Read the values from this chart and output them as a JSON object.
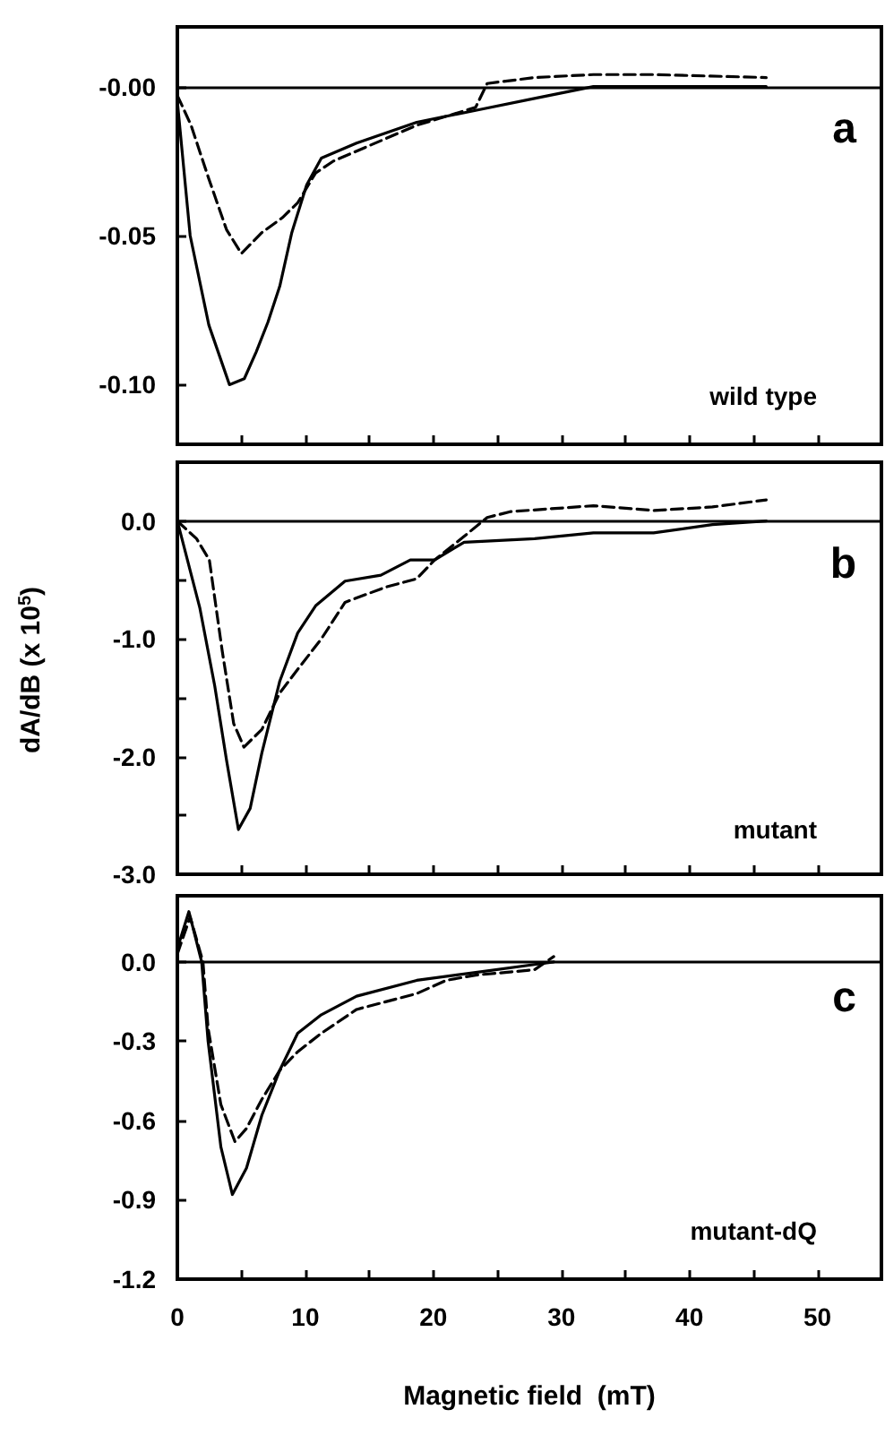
{
  "chart_data": [
    {
      "type": "line",
      "annotations": [
        "a",
        "wild type"
      ],
      "xlim": [
        0,
        55
      ],
      "xticks": [
        0,
        {
          "value": 5,
          "label": null
        },
        10,
        {
          "value": 15,
          "label": null
        },
        20,
        {
          "value": 25,
          "label": null
        },
        30,
        {
          "value": 35,
          "label": null
        },
        40,
        {
          "value": 45,
          "label": null
        },
        50
      ],
      "ylim": [
        -0.12,
        0.02
      ],
      "yticks": [
        {
          "value": 0,
          "label": "-0.00"
        },
        {
          "value": -0.05,
          "label": "-0.05"
        },
        {
          "value": -0.1,
          "label": "-0.10"
        }
      ],
      "tick_labels": "y",
      "grid": false,
      "marker": "none",
      "ref_lines": [
        {
          "axis": "y",
          "value": 0,
          "color": "#000000"
        }
      ],
      "series": [
        {
          "color": "#000000",
          "line_style": "solid",
          "x": [
            0,
            1.0,
            2.46,
            4.07,
            5.23,
            6.16,
            7.08,
            8.0,
            8.94,
            10.1,
            11.25,
            14.0,
            18.7,
            23.3,
            27.9,
            32.5,
            37.2,
            46.0
          ],
          "values": [
            -0.005,
            -0.05,
            -0.08,
            -0.1,
            -0.098,
            -0.089,
            -0.079,
            -0.067,
            -0.049,
            -0.033,
            -0.024,
            -0.019,
            -0.012,
            -0.008,
            -0.004,
            0.0,
            0.0,
            0.0
          ]
        },
        {
          "color": "#000000",
          "line_style": "dashed",
          "x": [
            0,
            1.07,
            2.46,
            3.84,
            5.0,
            6.6,
            8.2,
            9.4,
            10.8,
            12.2,
            18.7,
            23.3,
            24.2,
            27.9,
            32.5,
            37.2,
            46.0
          ],
          "values": [
            -0.003,
            -0.013,
            -0.031,
            -0.048,
            -0.056,
            -0.049,
            -0.044,
            -0.039,
            -0.029,
            -0.025,
            -0.013,
            -0.007,
            0.001,
            0.003,
            0.004,
            0.004,
            0.003
          ]
        }
      ]
    },
    {
      "type": "line",
      "annotations": [
        "b",
        "mutant"
      ],
      "ylabel": "dA/dB  (x 10$^{5}$)",
      "xlim": [
        0,
        55
      ],
      "xticks": [
        0,
        {
          "value": 5,
          "label": null
        },
        10,
        {
          "value": 15,
          "label": null
        },
        20,
        {
          "value": 25,
          "label": null
        },
        30,
        {
          "value": 35,
          "label": null
        },
        40,
        {
          "value": 45,
          "label": null
        },
        50
      ],
      "ylim": [
        -3,
        0.5
      ],
      "yticks": [
        {
          "value": 0,
          "label": "0.0"
        },
        {
          "value": -0.5,
          "label": null
        },
        {
          "value": -1,
          "label": "-1.0"
        },
        {
          "value": -1.5,
          "label": null
        },
        {
          "value": -2,
          "label": "-2.0"
        },
        {
          "value": -2.5,
          "label": null
        },
        {
          "value": -3,
          "label": "-3.0"
        }
      ],
      "tick_labels": "y",
      "grid": false,
      "marker": "none",
      "ref_lines": [
        {
          "axis": "y",
          "value": 0,
          "color": "#000000"
        }
      ],
      "series": [
        {
          "color": "#000000",
          "line_style": "solid",
          "x": [
            0,
            1.76,
            2.92,
            3.84,
            4.77,
            5.69,
            6.6,
            8.0,
            9.4,
            10.8,
            13.1,
            15.9,
            18.2,
            20.1,
            22.4,
            27.9,
            32.5,
            37.2,
            41.8,
            46.0
          ],
          "values": [
            0,
            -0.74,
            -1.4,
            -2.03,
            -2.62,
            -2.44,
            -1.97,
            -1.36,
            -0.95,
            -0.72,
            -0.51,
            -0.46,
            -0.33,
            -0.33,
            -0.18,
            -0.15,
            -0.1,
            -0.1,
            -0.03,
            0
          ]
        },
        {
          "color": "#000000",
          "line_style": "dashed",
          "x": [
            0,
            1.5,
            2.5,
            3.5,
            4.4,
            5.2,
            6.6,
            8.0,
            9.4,
            11.25,
            13.1,
            16.3,
            18.7,
            20.1,
            22.4,
            24.2,
            26.0,
            32.5,
            37.2,
            41.8,
            46.0
          ],
          "values": [
            0,
            -0.15,
            -0.33,
            -1.1,
            -1.72,
            -1.92,
            -1.77,
            -1.46,
            -1.26,
            -1.0,
            -0.69,
            -0.56,
            -0.49,
            -0.33,
            -0.13,
            0.03,
            0.08,
            0.13,
            0.09,
            0.12,
            0.18
          ]
        }
      ]
    },
    {
      "type": "line",
      "annotations": [
        "c",
        "mutant-dQ"
      ],
      "xlabel": "Magnetic field  (mT)",
      "xlim": [
        0,
        55
      ],
      "xticks": [
        0,
        {
          "value": 5,
          "label": null
        },
        10,
        {
          "value": 15,
          "label": null
        },
        20,
        {
          "value": 25,
          "label": null
        },
        30,
        {
          "value": 35,
          "label": null
        },
        40,
        {
          "value": 45,
          "label": null
        },
        50
      ],
      "ylim": [
        -1.2,
        0.25
      ],
      "yticks": [
        {
          "value": 0,
          "label": "0.0"
        },
        {
          "value": -0.3,
          "label": "-0.3"
        },
        {
          "value": -0.6,
          "label": "-0.6"
        },
        {
          "value": -0.9,
          "label": "-0.9"
        },
        {
          "value": -1.2,
          "label": "-1.2"
        }
      ],
      "grid": false,
      "marker": "none",
      "ref_lines": [
        {
          "axis": "y",
          "value": 0,
          "color": "#000000"
        }
      ],
      "series": [
        {
          "color": "#000000",
          "line_style": "solid",
          "x": [
            0,
            0.9,
            1.9,
            2.4,
            3.4,
            4.3,
            5.4,
            6.6,
            8.0,
            9.4,
            11.25,
            14.0,
            18.7,
            23.3,
            27.9,
            29.4
          ],
          "values": [
            0.05,
            0.19,
            0,
            -0.3,
            -0.7,
            -0.88,
            -0.78,
            -0.58,
            -0.41,
            -0.27,
            -0.2,
            -0.13,
            -0.07,
            -0.04,
            -0.01,
            0
          ]
        },
        {
          "color": "#000000",
          "line_style": "dashed",
          "x": [
            0,
            1.0,
            2.0,
            2.4,
            3.4,
            4.5,
            5.4,
            6.6,
            8.0,
            9.4,
            11.25,
            14.0,
            18.7,
            21.0,
            23.3,
            27.9,
            29.4
          ],
          "values": [
            0.03,
            0.17,
            0,
            -0.25,
            -0.54,
            -0.68,
            -0.63,
            -0.52,
            -0.41,
            -0.34,
            -0.27,
            -0.18,
            -0.12,
            -0.07,
            -0.05,
            -0.03,
            0.02
          ]
        }
      ]
    }
  ]
}
